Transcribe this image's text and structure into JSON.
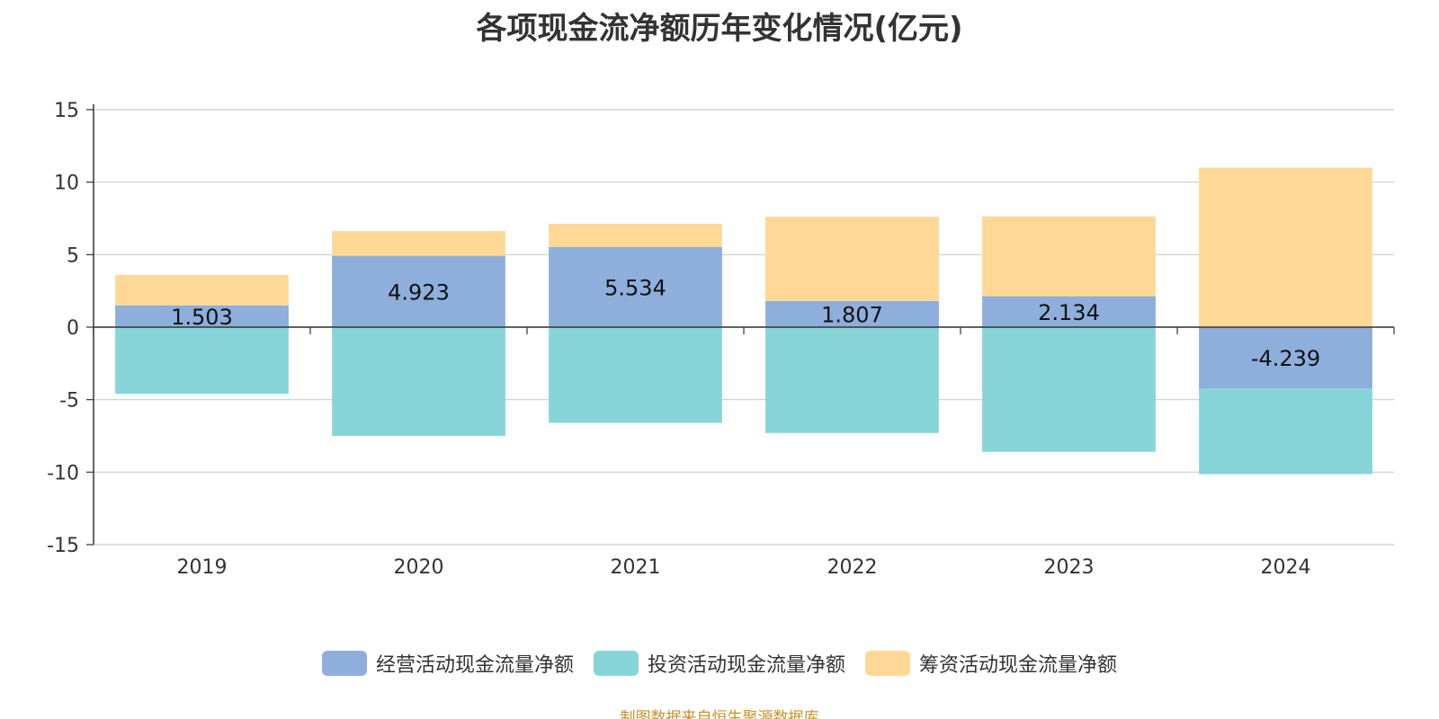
{
  "chart_data": {
    "type": "bar",
    "stacked": true,
    "title": "各项现金流净额历年变化情况(亿元)",
    "xlabel": "",
    "ylabel": "",
    "categories": [
      "2019",
      "2020",
      "2021",
      "2022",
      "2023",
      "2024"
    ],
    "ylim": [
      -15,
      15
    ],
    "yticks": [
      15,
      10,
      5,
      0,
      -5,
      -10,
      -15
    ],
    "grid": true,
    "legend_position": "bottom",
    "series": [
      {
        "name": "经营活动现金流量净额",
        "color": "#8eaedc",
        "values": [
          1.503,
          4.923,
          5.534,
          1.807,
          2.134,
          -4.239
        ],
        "labels": [
          "1.503",
          "4.923",
          "5.534",
          "1.807",
          "2.134",
          "-4.239"
        ]
      },
      {
        "name": "投资活动现金流量净额",
        "color": "#88d5d9",
        "values": [
          -4.6,
          -7.5,
          -6.6,
          -7.3,
          -8.6,
          -5.9
        ]
      },
      {
        "name": "筹资活动现金流量净额",
        "color": "#ffd896",
        "values": [
          2.1,
          1.7,
          1.6,
          5.8,
          5.5,
          11.0
        ]
      }
    ]
  },
  "source_note": "制图数据来自恒生聚源数据库"
}
